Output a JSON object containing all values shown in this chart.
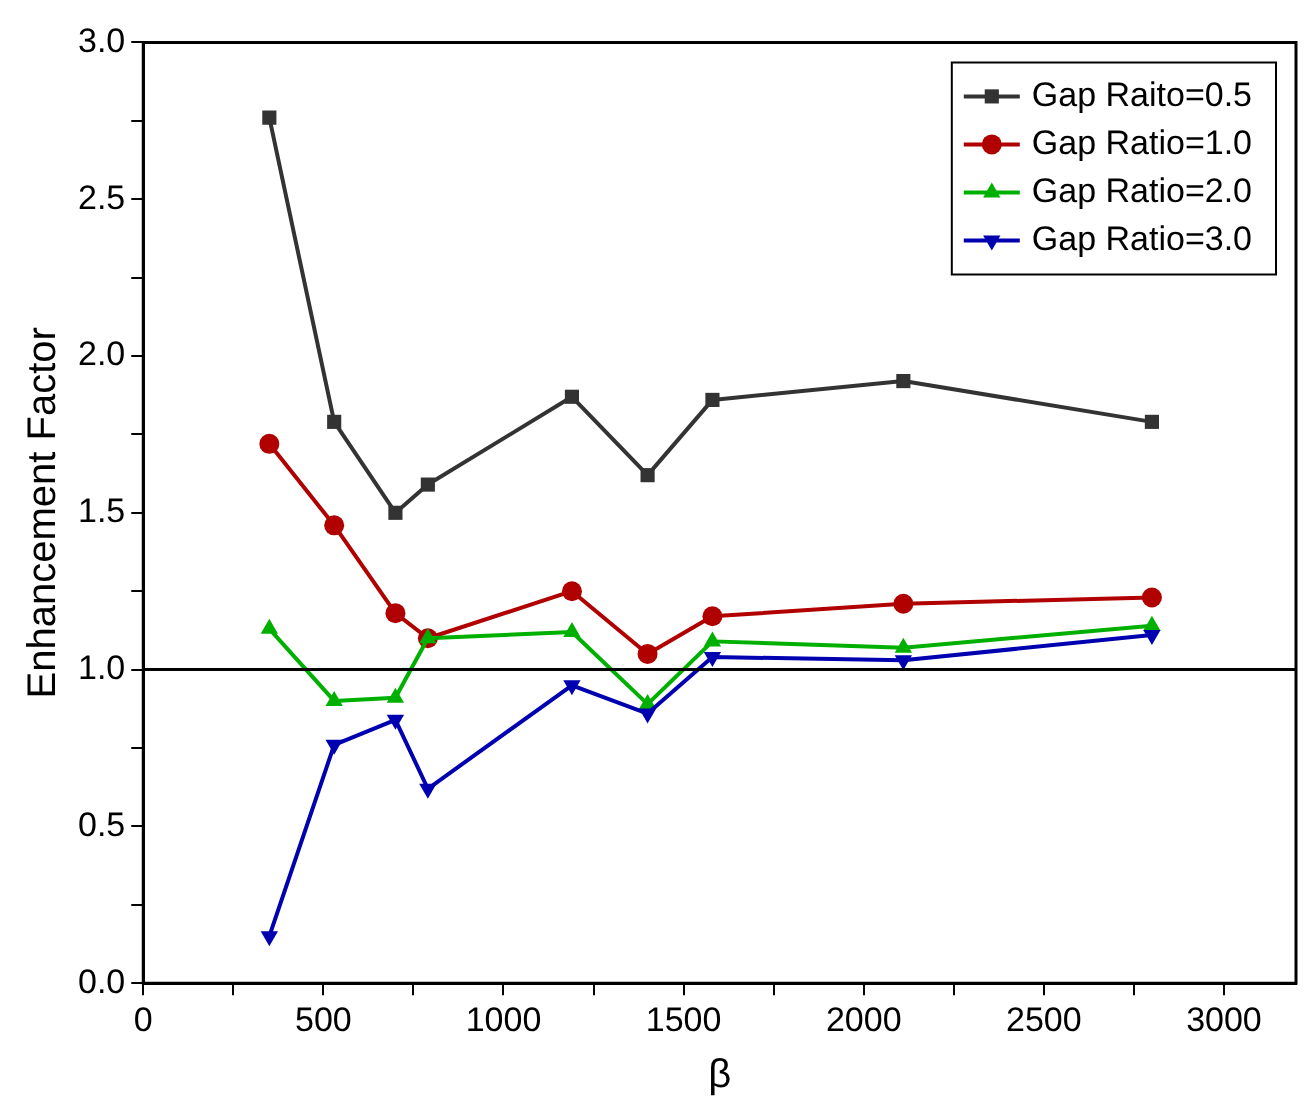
{
  "chart_data": {
    "type": "line",
    "xlabel": "β",
    "ylabel": "Enhancement Factor",
    "x": [
      350,
      530,
      700,
      790,
      1190,
      1400,
      1580,
      2110,
      2800
    ],
    "series": [
      {
        "name": "Gap Raito=0.5",
        "color": "#333333",
        "marker": "square",
        "values": [
          2.76,
          1.79,
          1.5,
          1.59,
          1.87,
          1.62,
          1.86,
          1.92,
          1.79
        ]
      },
      {
        "name": "Gap Ratio=1.0",
        "color": "#b00000",
        "marker": "circle",
        "values": [
          1.72,
          1.46,
          1.18,
          1.1,
          1.25,
          1.05,
          1.17,
          1.21,
          1.23
        ]
      },
      {
        "name": "Gap Ratio=2.0",
        "color": "#00b000",
        "marker": "triangle",
        "values": [
          1.13,
          0.9,
          0.91,
          1.1,
          1.12,
          0.89,
          1.09,
          1.07,
          1.14
        ]
      },
      {
        "name": "Gap Ratio=3.0",
        "color": "#0000b0",
        "marker": "triangle-down",
        "values": [
          0.15,
          0.76,
          0.84,
          0.62,
          0.95,
          0.86,
          1.04,
          1.03,
          1.11
        ]
      }
    ],
    "xlim": [
      0,
      3200
    ],
    "xticks": [
      0,
      {
        "value": 250,
        "label": null
      },
      500,
      {
        "value": 750,
        "label": null
      },
      1000,
      {
        "value": 1250,
        "label": null
      },
      1500,
      {
        "value": 1750,
        "label": null
      },
      2000,
      {
        "value": 2250,
        "label": null
      },
      2500,
      {
        "value": 2750,
        "label": null
      },
      3000
    ],
    "ylim": [
      0,
      3
    ],
    "yticks": [
      {
        "value": 0,
        "label": "0.0"
      },
      {
        "value": 0.25,
        "label": null
      },
      0.5,
      {
        "value": 0.75,
        "label": null
      },
      {
        "value": 1,
        "label": "1.0"
      },
      {
        "value": 1.25,
        "label": null
      },
      1.5,
      {
        "value": 1.75,
        "label": null
      },
      {
        "value": 2,
        "label": "2.0"
      },
      {
        "value": 2.25,
        "label": null
      },
      2.5,
      {
        "value": 2.75,
        "label": null
      },
      {
        "value": 3,
        "label": "3.0"
      }
    ],
    "ref_lines": [
      {
        "axis": "y",
        "value": 1,
        "color": "#000000"
      }
    ],
    "grid": false,
    "legend": "top right",
    "line_style": "solid"
  }
}
